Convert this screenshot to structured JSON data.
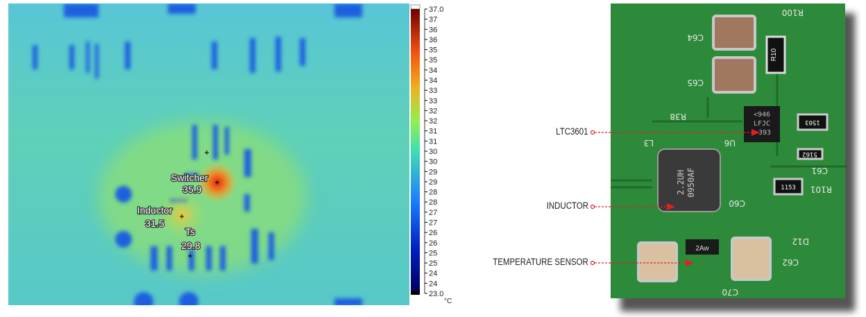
{
  "thermal": {
    "colorbar_ticks": [
      "37.0",
      "37",
      "36",
      "36",
      "35",
      "35",
      "34",
      "34",
      "33",
      "33",
      "32",
      "32",
      "31",
      "31",
      "30",
      "30",
      "29",
      "29",
      "28",
      "28",
      "27",
      "27",
      "26",
      "26",
      "25",
      "25",
      "24",
      "24",
      "23.0"
    ],
    "unit": "°C",
    "range": [
      23.0,
      37.0
    ],
    "markers": [
      {
        "name": "Switcher",
        "value": "35.9"
      },
      {
        "name": "Inductor",
        "value": "31.5"
      },
      {
        "name": "Ts",
        "value": "29.8"
      }
    ]
  },
  "photo": {
    "callouts": [
      "LTC3601",
      "INDUCTOR",
      "TEMPERATURE SENSOR"
    ],
    "silkscreen": [
      "C64",
      "C65",
      "R10",
      "R38",
      "U6",
      "L3",
      "C60",
      "C61",
      "R101",
      "D12",
      "C62",
      "C70",
      "R100"
    ],
    "chip_marking": [
      "<946",
      "LFJC",
      "393"
    ],
    "inductor_marking": [
      "2.2UH",
      "0950AF"
    ],
    "sensor_marking": "2Aw",
    "resistor_markings": [
      "1153",
      "1503",
      "5162"
    ],
    "arrow_color": "#e02020"
  }
}
